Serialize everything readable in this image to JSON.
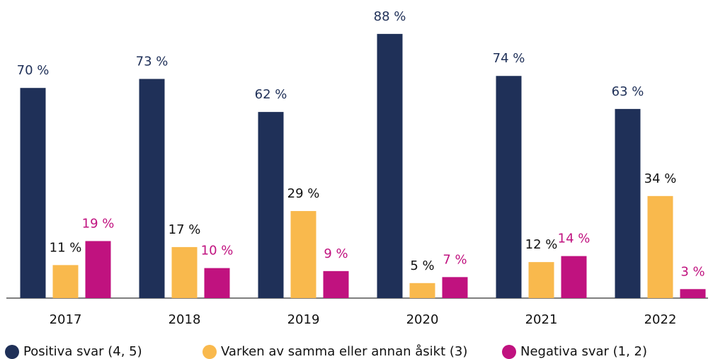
{
  "chart_data": {
    "type": "bar",
    "categories": [
      "2017",
      "2018",
      "2019",
      "2020",
      "2021",
      "2022"
    ],
    "series": [
      {
        "name": "Positiva svar (4, 5)",
        "color": "#1f3058",
        "values": [
          70,
          73,
          62,
          88,
          74,
          63
        ],
        "value_labels": [
          "70 %",
          "73 %",
          "62 %",
          "88 %",
          "74 %",
          "63 %"
        ]
      },
      {
        "name": "Varken av samma eller annan åsikt (3)",
        "color": "#f9b94d",
        "values": [
          11,
          17,
          29,
          5,
          12,
          34
        ],
        "value_labels": [
          "11 %",
          "17 %",
          "29 %",
          "5 %",
          "12 %",
          "34 %"
        ]
      },
      {
        "name": "Negativa svar (1, 2)",
        "color": "#c0127f",
        "values": [
          19,
          10,
          9,
          7,
          14,
          3
        ],
        "value_labels": [
          "19 %",
          "10 %",
          "9 %",
          "7 %",
          "14 %",
          "3 %"
        ]
      }
    ],
    "ylim": [
      0,
      100
    ]
  }
}
